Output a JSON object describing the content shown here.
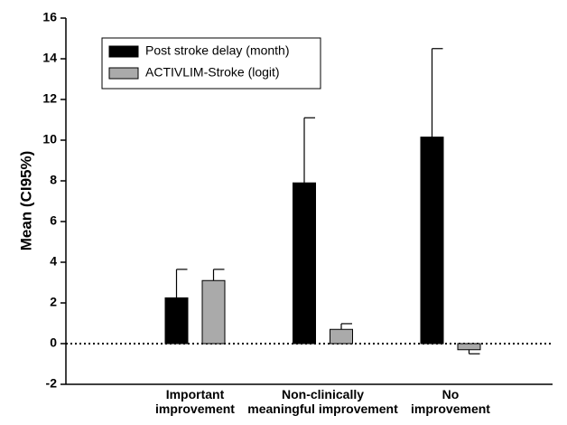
{
  "chart_data": {
    "type": "bar",
    "y_label": "Mean (CI95%)",
    "categories": [
      "Important\nimprovement",
      "Non-clinically\nmeaningful improvement",
      "No\nimprovement"
    ],
    "series": [
      {
        "name": "Post stroke delay (month)",
        "color": "#000000",
        "values": [
          2.25,
          7.9,
          10.15
        ],
        "errors": [
          1.4,
          3.2,
          4.35
        ]
      },
      {
        "name": "ACTIVLIM-Stroke (logit)",
        "color": "#aaaaaa",
        "values": [
          3.1,
          0.7,
          -0.3
        ],
        "errors": [
          0.55,
          0.28,
          0.2
        ]
      }
    ],
    "ylim": [
      -2,
      16
    ],
    "yticks": [
      -2,
      0,
      2,
      4,
      6,
      8,
      10,
      12,
      14,
      16
    ],
    "legend": "upper left"
  }
}
